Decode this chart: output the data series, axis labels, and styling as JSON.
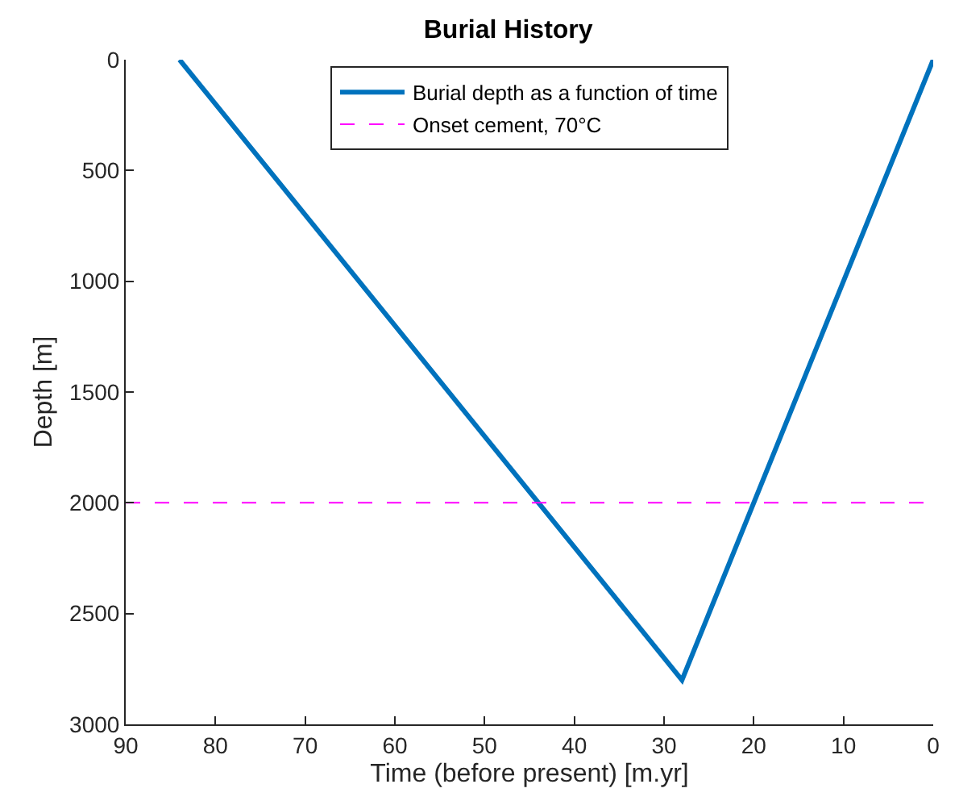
{
  "chart_data": {
    "type": "line",
    "title": "Burial History",
    "xlabel": "Time (before present) [m.yr]",
    "ylabel": "Depth [m]",
    "x": [
      84,
      28,
      0
    ],
    "series": [
      {
        "name": "Burial depth as a function of time",
        "color": "#0072bd",
        "values": [
          0,
          2800,
          0
        ]
      }
    ],
    "ref_lines": [
      {
        "axis": "y",
        "value": 2000,
        "label": "Onset cement, 70°C",
        "color": "#ff00ff",
        "line_style": "dashed"
      }
    ],
    "xlim": [
      90,
      0
    ],
    "xticks": [
      90,
      80,
      70,
      60,
      50,
      40,
      30,
      20,
      10,
      0
    ],
    "ylim": [
      3000,
      0
    ],
    "yticks": [
      0,
      500,
      1000,
      1500,
      2000,
      2500,
      3000
    ],
    "grid": false,
    "legend": "top",
    "marker": "none",
    "line_style": "solid"
  }
}
